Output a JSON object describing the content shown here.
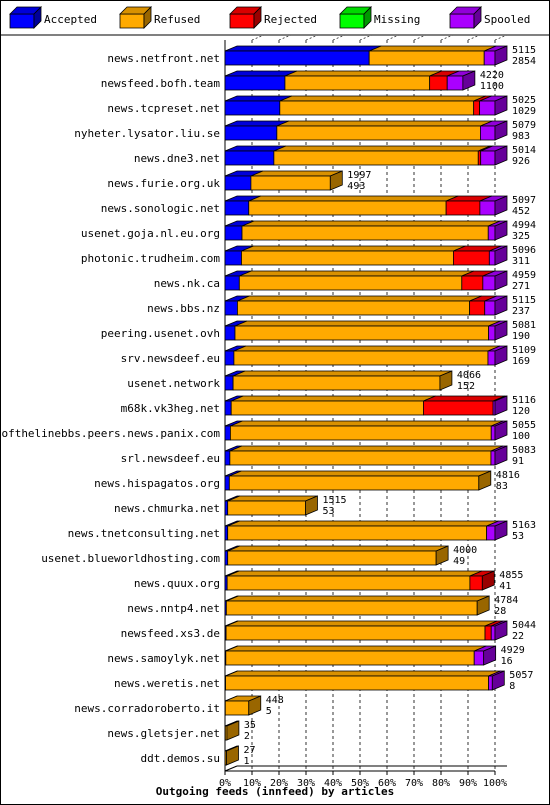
{
  "chart_data": {
    "type": "bar",
    "stacked": true,
    "orientation": "horizontal",
    "title": "",
    "xlabel": "Outgoing feeds (innfeed) by articles",
    "ylabel": "",
    "xlim": [
      0,
      100
    ],
    "x_unit": "%",
    "x_ticks": [
      "0%",
      "10%",
      "20%",
      "30%",
      "40%",
      "50%",
      "60%",
      "70%",
      "80%",
      "90%",
      "100%"
    ],
    "grid": "vertical dashed",
    "legend_position": "top",
    "series": [
      {
        "name": "Accepted",
        "color": "#0000ff"
      },
      {
        "name": "Refused",
        "color": "#ffaa00"
      },
      {
        "name": "Rejected",
        "color": "#ff0000"
      },
      {
        "name": "Missing",
        "color": "#00ff00"
      },
      {
        "name": "Spooled",
        "color": "#aa00ff"
      }
    ],
    "rows": [
      {
        "label": "news.netfront.net",
        "total": "5115",
        "accepted": "2854",
        "pct": [
          53.4,
          42.6,
          0,
          0,
          4.0
        ]
      },
      {
        "label": "newsfeed.bofh.team",
        "total": "4220",
        "accepted": "1100",
        "pct": [
          22.2,
          53.6,
          6.5,
          0,
          5.8
        ]
      },
      {
        "label": "news.tcpreset.net",
        "total": "5025",
        "accepted": "1029",
        "pct": [
          20.3,
          71.8,
          2.2,
          0,
          5.7
        ]
      },
      {
        "label": "nyheter.lysator.liu.se",
        "total": "5079",
        "accepted": "983",
        "pct": [
          19.2,
          75.4,
          0,
          0,
          5.4
        ]
      },
      {
        "label": "news.dne3.net",
        "total": "5014",
        "accepted": "926",
        "pct": [
          18.1,
          75.7,
          0.9,
          0,
          5.3
        ]
      },
      {
        "label": "news.furie.org.uk",
        "total": "1997",
        "accepted": "493",
        "pct": [
          9.6,
          29.4,
          0,
          0,
          0
        ]
      },
      {
        "label": "news.sonologic.net",
        "total": "5097",
        "accepted": "452",
        "pct": [
          8.8,
          73.1,
          12.5,
          0,
          5.6
        ]
      },
      {
        "label": "usenet.goja.nl.eu.org",
        "total": "4994",
        "accepted": "325",
        "pct": [
          6.3,
          91.2,
          0,
          0,
          2.5
        ]
      },
      {
        "label": "photonic.trudheim.com",
        "total": "5096",
        "accepted": "311",
        "pct": [
          6.1,
          78.5,
          13.3,
          0,
          2.1
        ]
      },
      {
        "label": "news.nk.ca",
        "total": "4959",
        "accepted": "271",
        "pct": [
          5.3,
          82.4,
          7.8,
          0,
          4.5
        ]
      },
      {
        "label": "news.bbs.nz",
        "total": "5115",
        "accepted": "237",
        "pct": [
          4.6,
          86.0,
          5.6,
          0,
          3.8
        ]
      },
      {
        "label": "peering.usenet.ovh",
        "total": "5081",
        "accepted": "190",
        "pct": [
          3.7,
          93.9,
          0,
          0,
          2.4
        ]
      },
      {
        "label": "srv.newsdeef.eu",
        "total": "5109",
        "accepted": "169",
        "pct": [
          3.3,
          94.1,
          0,
          0,
          2.6
        ]
      },
      {
        "label": "usenet.network",
        "total": "4066",
        "accepted": "152",
        "pct": [
          3.0,
          76.6,
          0,
          0,
          0
        ]
      },
      {
        "label": "m68k.vk3heg.net",
        "total": "5116",
        "accepted": "120",
        "pct": [
          2.3,
          71.2,
          25.8,
          0,
          0.7
        ]
      },
      {
        "label": "endofthelinebbs.peers.news.panix.com",
        "total": "5055",
        "accepted": "100",
        "pct": [
          2.0,
          96.6,
          0,
          0,
          1.4
        ]
      },
      {
        "label": "srl.newsdeef.eu",
        "total": "5083",
        "accepted": "91",
        "pct": [
          1.8,
          96.7,
          0,
          0,
          1.5
        ]
      },
      {
        "label": "news.hispagatos.org",
        "total": "4816",
        "accepted": "83",
        "pct": [
          1.6,
          92.4,
          0,
          0,
          0
        ]
      },
      {
        "label": "news.chmurka.net",
        "total": "1515",
        "accepted": "53",
        "pct": [
          1.0,
          28.8,
          0,
          0,
          0
        ]
      },
      {
        "label": "news.tnetconsulting.net",
        "total": "5163",
        "accepted": "53",
        "pct": [
          1.0,
          95.9,
          0,
          0,
          3.1
        ]
      },
      {
        "label": "usenet.blueworldhosting.com",
        "total": "4000",
        "accepted": "49",
        "pct": [
          1.0,
          77.2,
          0,
          0,
          0
        ]
      },
      {
        "label": "news.quux.org",
        "total": "4855",
        "accepted": "41",
        "pct": [
          0.8,
          89.9,
          4.6,
          0,
          0
        ]
      },
      {
        "label": "news.nntp4.net",
        "total": "4784",
        "accepted": "28",
        "pct": [
          0.5,
          92.9,
          0,
          0,
          0
        ]
      },
      {
        "label": "newsfeed.xs3.de",
        "total": "5044",
        "accepted": "22",
        "pct": [
          0.4,
          95.9,
          2.3,
          0,
          1.4
        ]
      },
      {
        "label": "news.samoylyk.net",
        "total": "4929",
        "accepted": "16",
        "pct": [
          0.3,
          92.0,
          0,
          0,
          3.5
        ]
      },
      {
        "label": "news.weretis.net",
        "total": "5057",
        "accepted": "8",
        "pct": [
          0.2,
          97.4,
          0,
          0,
          1.4
        ]
      },
      {
        "label": "news.corradoroberto.it",
        "total": "448",
        "accepted": "5",
        "pct": [
          0.1,
          8.7,
          0,
          0,
          0
        ]
      },
      {
        "label": "news.gletsjer.net",
        "total": "35",
        "accepted": "2",
        "pct": [
          0.1,
          0.6,
          0,
          0,
          0
        ]
      },
      {
        "label": "ddt.demos.su",
        "total": "27",
        "accepted": "1",
        "pct": [
          0.05,
          0.5,
          0,
          0,
          0
        ]
      }
    ]
  }
}
